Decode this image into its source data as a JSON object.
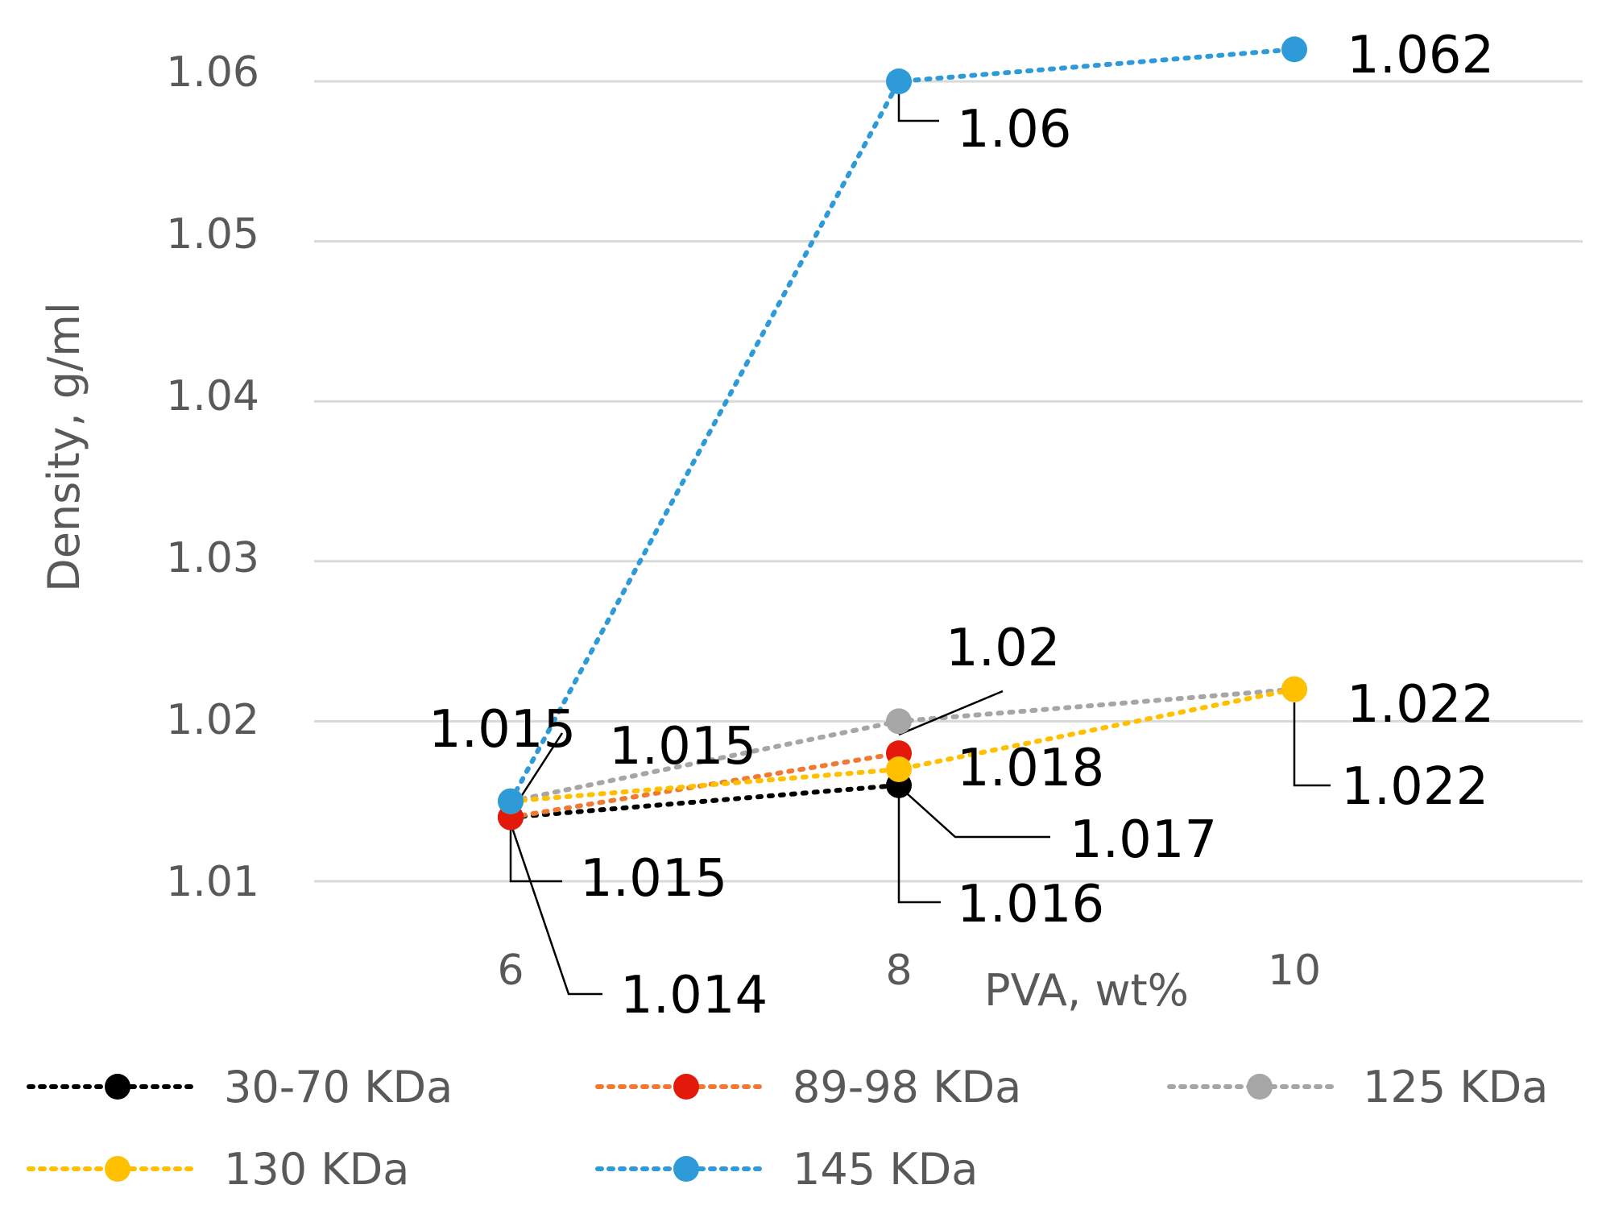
{
  "chart_data": {
    "type": "line",
    "title": "",
    "xlabel": "PVA, wt%",
    "ylabel": "Density, g/ml",
    "categories": [
      "6",
      "8",
      "10"
    ],
    "yticks": [
      "1.01",
      "1.02",
      "1.03",
      "1.04",
      "1.05",
      "1.06"
    ],
    "ylim": [
      1.005,
      1.0645
    ],
    "grid": true,
    "legend_position": "bottom",
    "series": [
      {
        "name": "30-70 KDa",
        "color": "#000000",
        "values": [
          1.014,
          1.016,
          null
        ],
        "labels": [
          "1.014",
          "1.016",
          null
        ]
      },
      {
        "name": "89-98 KDa",
        "color": "#E31A0B",
        "line_color": "#F07A32",
        "values": [
          1.014,
          1.018,
          null
        ],
        "labels": [
          null,
          "1.018",
          null
        ]
      },
      {
        "name": "125 KDa",
        "color": "#A6A6A6",
        "values": [
          1.015,
          1.02,
          1.022
        ],
        "labels": [
          "1.015",
          "1.02",
          "1.022"
        ]
      },
      {
        "name": "130 KDa",
        "color": "#FFC000",
        "values": [
          1.015,
          1.017,
          1.022
        ],
        "labels": [
          "1.015",
          "1.017",
          "1.022"
        ]
      },
      {
        "name": "145 KDa",
        "color": "#2E9BD8",
        "values": [
          1.015,
          1.06,
          1.062
        ],
        "labels": [
          "1.015",
          "1.06",
          "1.062"
        ]
      }
    ]
  }
}
